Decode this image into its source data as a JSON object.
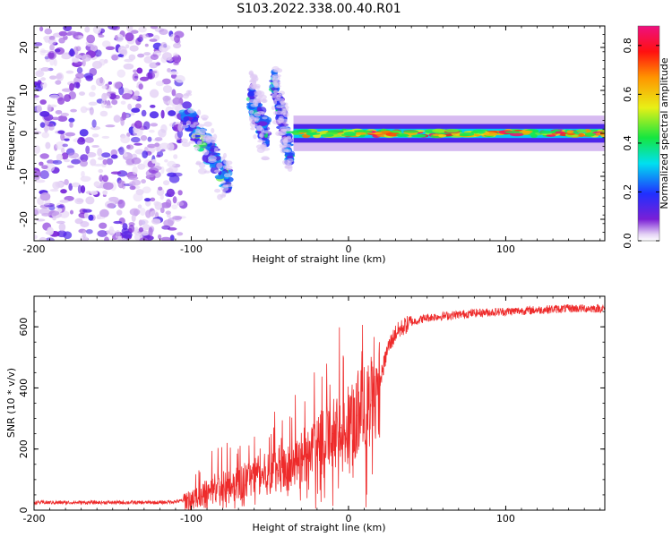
{
  "figure_title": "S103.2022.338.00.40.R01",
  "colors": {
    "snr_line": "#ee2b2b",
    "axis": "#000000",
    "background": "#ffffff"
  },
  "chart_data": [
    {
      "id": "spectrogram",
      "type": "heatmap",
      "title": "",
      "xlabel": "Height of straight line (km)",
      "ylabel": "Frequency (Hz)",
      "xlim": [
        -200,
        163
      ],
      "ylim": [
        -25,
        25
      ],
      "xticks": [
        -200,
        -100,
        0,
        100
      ],
      "yticks": [
        -20,
        -10,
        0,
        10,
        20
      ],
      "colorbar": {
        "label": "Normalized spectral amplitude",
        "range": [
          0.0,
          0.88
        ],
        "ticks": [
          0.0,
          0.2,
          0.4,
          0.6,
          0.8
        ],
        "colormap": "rainbow (white at 0, purple, blue, cyan, green, yellow, orange, red, magenta at max)"
      },
      "regions": [
        {
          "x_range": [
            -200,
            -105
          ],
          "frequency_range": [
            -25,
            25
          ],
          "description": "broadband noise",
          "amplitude_range": [
            0.02,
            0.15
          ]
        },
        {
          "x_range": [
            -105,
            -75
          ],
          "frequency_track": [
            5,
            -12
          ],
          "description": "descending track",
          "amplitude_range": [
            0.1,
            0.3
          ]
        },
        {
          "x_range": [
            -62,
            -52
          ],
          "frequency_track": [
            8,
            0
          ],
          "description": "secondary track",
          "amplitude_range": [
            0.1,
            0.25
          ]
        },
        {
          "x_range": [
            -48,
            -37
          ],
          "frequency_track": [
            13,
            -5
          ],
          "description": "secondary track",
          "amplitude_range": [
            0.1,
            0.25
          ]
        },
        {
          "x_range": [
            -35,
            163
          ],
          "frequency_center": 0,
          "frequency_halfwidth": 1.8,
          "description": "stable carrier line",
          "amplitude_range": [
            0.4,
            0.88
          ]
        }
      ]
    },
    {
      "id": "snr",
      "type": "line",
      "title": "",
      "xlabel": "Height of straight line (km)",
      "ylabel": "SNR (10 * v/v)",
      "xlim": [
        -200,
        163
      ],
      "ylim": [
        0,
        700
      ],
      "xticks": [
        -200,
        -100,
        0,
        100
      ],
      "yticks": [
        0,
        200,
        400,
        600
      ],
      "series": [
        {
          "name": "SNR",
          "x": [
            -200,
            -180,
            -160,
            -140,
            -120,
            -110,
            -100,
            -95,
            -90,
            -85,
            -80,
            -75,
            -70,
            -65,
            -60,
            -55,
            -50,
            -45,
            -40,
            -35,
            -30,
            -25,
            -20,
            -15,
            -10,
            -5,
            0,
            5,
            10,
            15,
            20,
            25,
            30,
            35,
            40,
            50,
            60,
            70,
            80,
            100,
            120,
            140,
            163
          ],
          "values": [
            25,
            25,
            25,
            25,
            25,
            28,
            35,
            45,
            55,
            70,
            80,
            75,
            85,
            95,
            110,
            115,
            120,
            130,
            140,
            155,
            150,
            175,
            200,
            225,
            250,
            270,
            280,
            310,
            330,
            360,
            420,
            530,
            580,
            600,
            615,
            630,
            635,
            640,
            645,
            650,
            655,
            660,
            660
          ]
        }
      ]
    }
  ]
}
